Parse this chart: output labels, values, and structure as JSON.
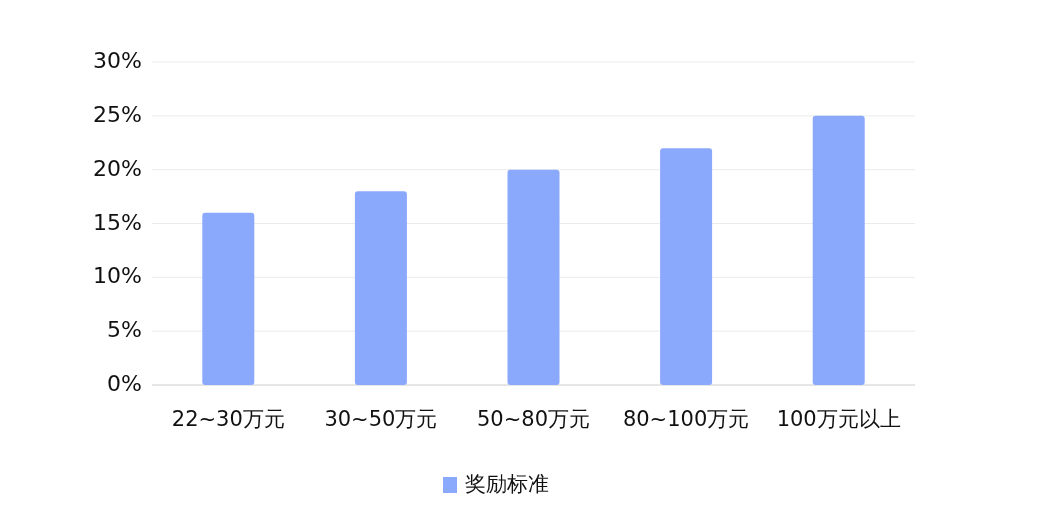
{
  "chart_data": {
    "type": "bar",
    "categories": [
      "22~30万元",
      "30~50万元",
      "50~80万元",
      "80~100万元",
      "100万元以上"
    ],
    "series": [
      {
        "name": "奖励标准",
        "color": "#8aa8fc",
        "values": [
          16,
          18,
          20,
          22,
          25
        ]
      }
    ],
    "ylim": [
      0,
      30
    ],
    "yticks": [
      {
        "value": 0,
        "label": "0%"
      },
      {
        "value": 5,
        "label": "5%"
      },
      {
        "value": 10,
        "label": "10%"
      },
      {
        "value": 15,
        "label": "15%"
      },
      {
        "value": 20,
        "label": "20%"
      },
      {
        "value": 25,
        "label": "25%"
      },
      {
        "value": 30,
        "label": "30%"
      }
    ],
    "grid": "y",
    "legend": "bottom"
  }
}
